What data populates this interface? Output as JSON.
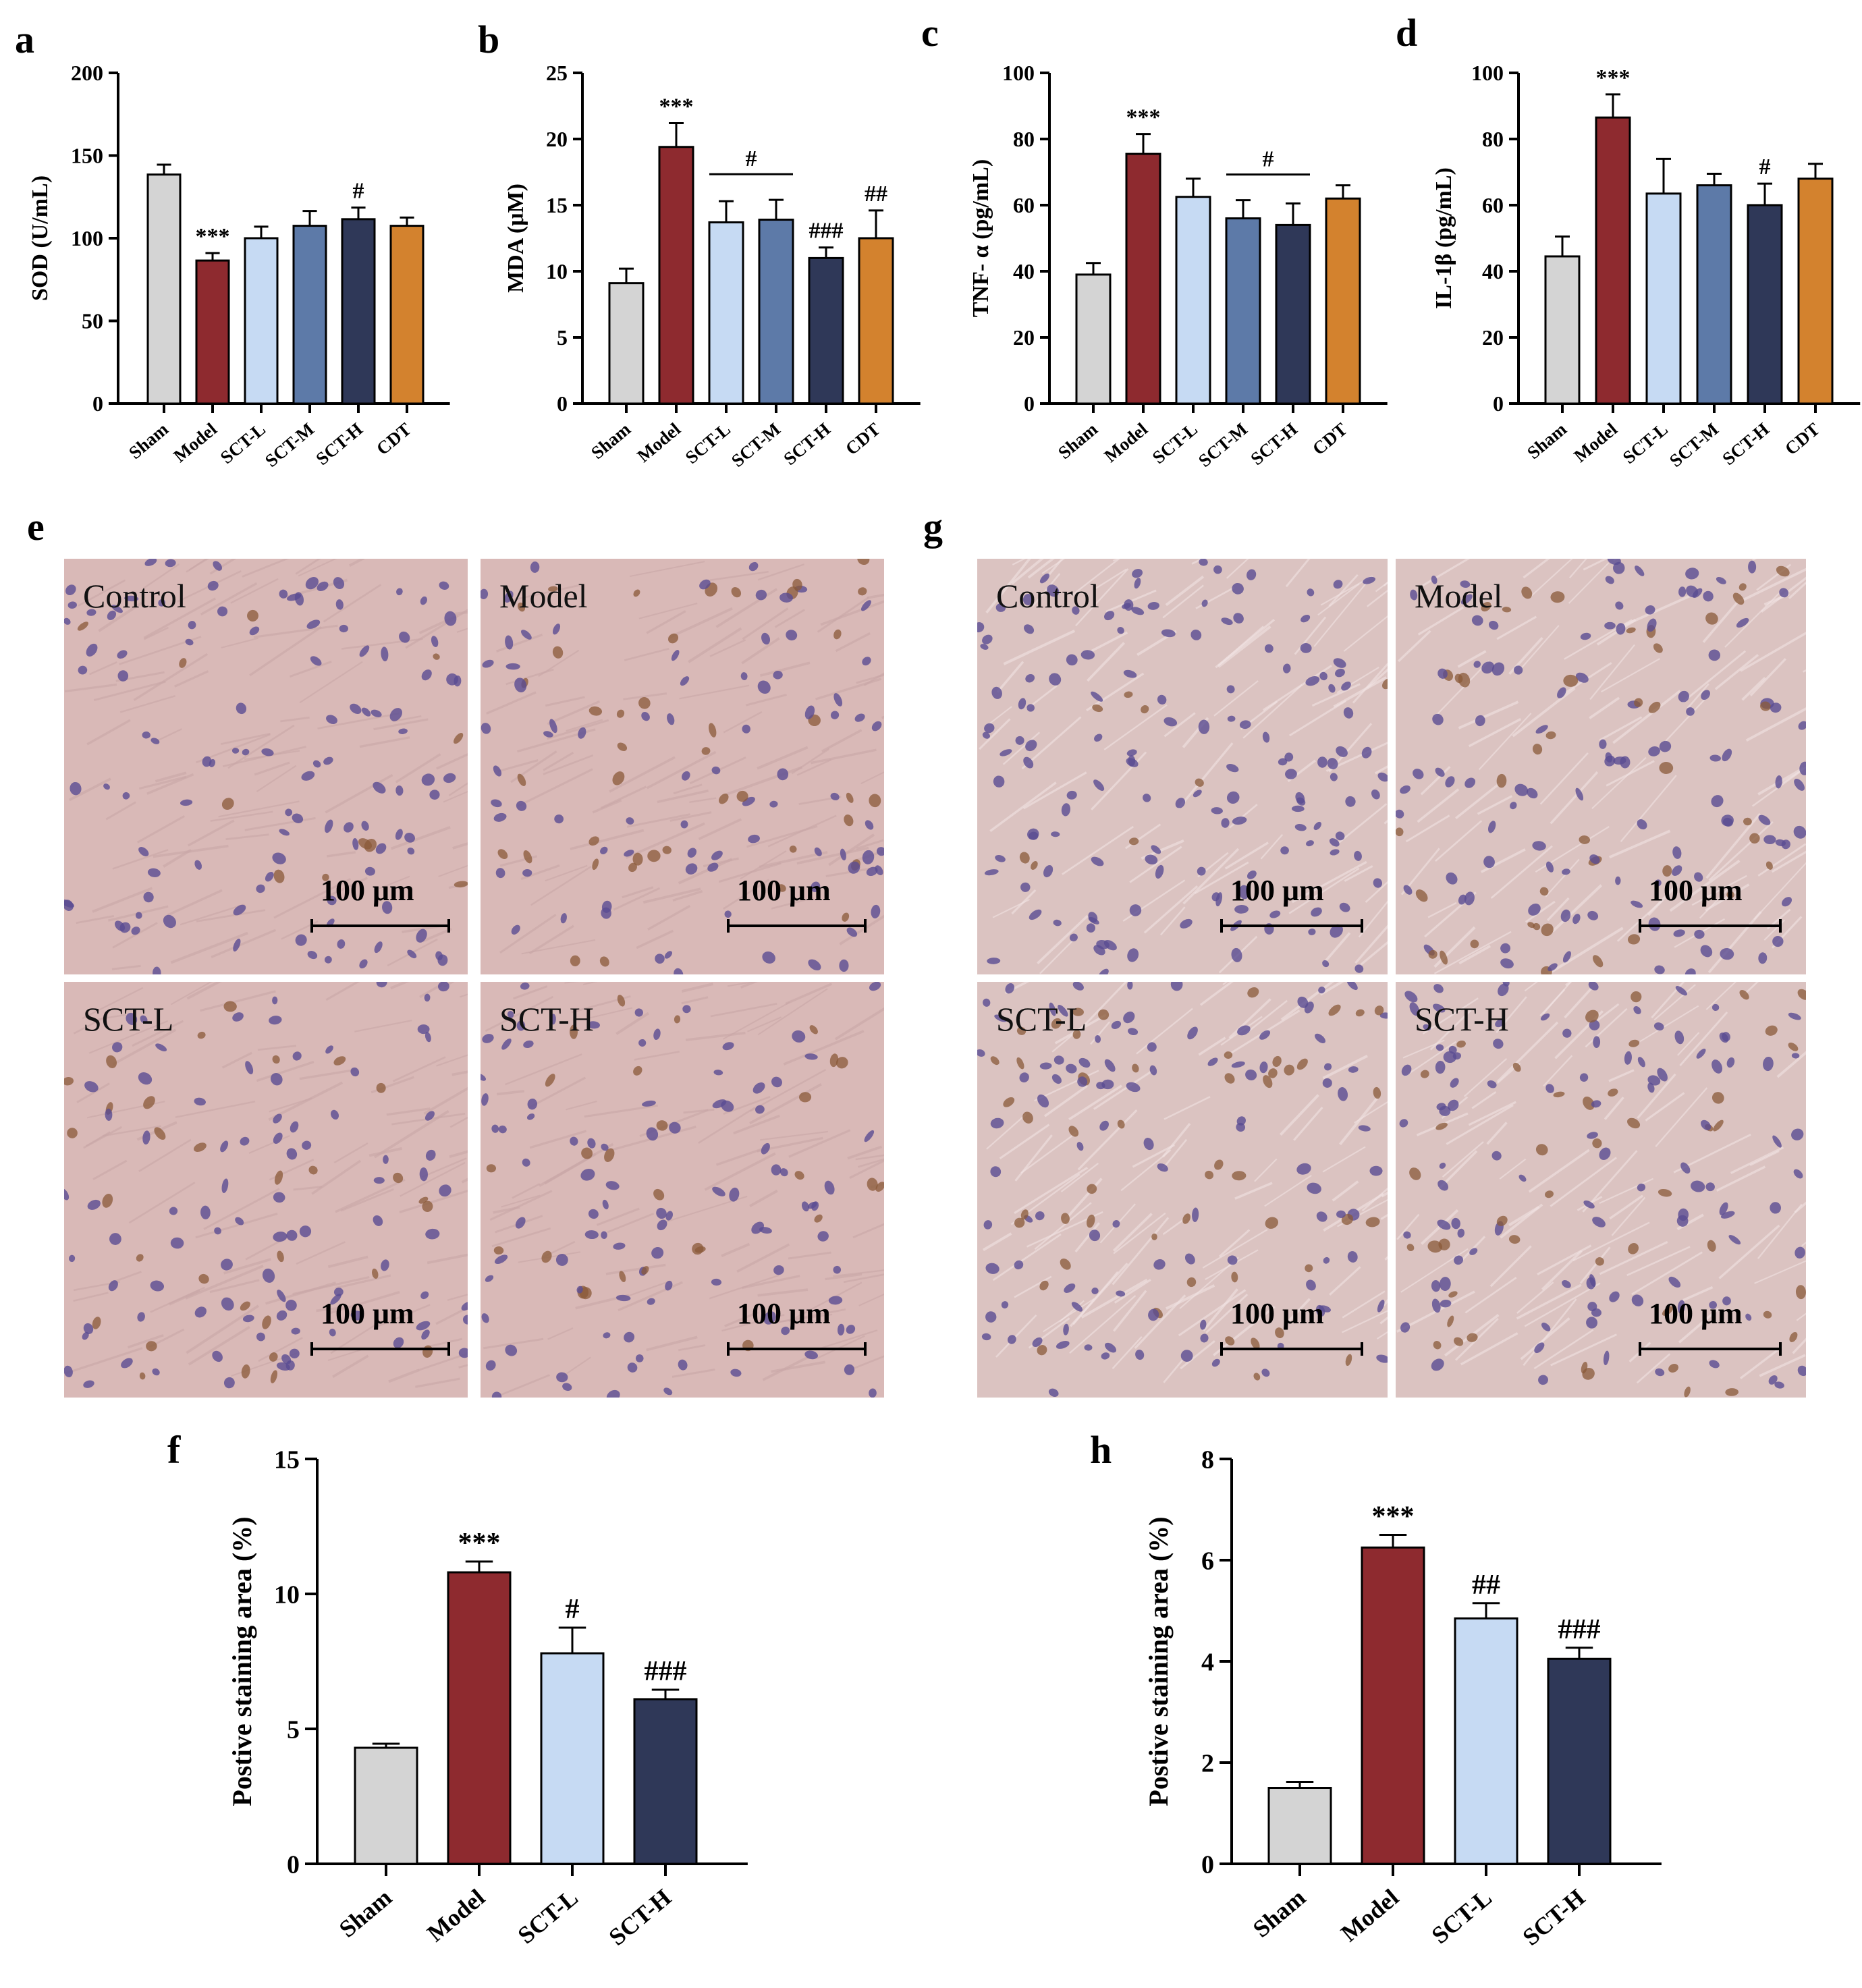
{
  "panel_letters": {
    "a": "a",
    "b": "b",
    "c": "c",
    "d": "d",
    "e": "e",
    "f": "f",
    "g": "g",
    "h": "h"
  },
  "colors": {
    "sham": "#d4d4d4",
    "model": "#8e2a2f",
    "sct_l": "#c6daf3",
    "sct_m": "#5d7aa8",
    "sct_h": "#2f3858",
    "cdt": "#d3822e",
    "tissue_light": "#dcc1bf",
    "tissue_dark": "#c9a8a8",
    "nucleus": "#5a4c92",
    "brown": "#8a5a38"
  },
  "icons": {
    "micrograph": "tissue-texture"
  },
  "chart_data": [
    {
      "id": "a",
      "type": "bar",
      "categories": [
        "Sham",
        "Model",
        "SCT-L",
        "SCT-M",
        "SCT-H",
        "CDT"
      ],
      "values": [
        138.5,
        86.5,
        100,
        107.5,
        111.5,
        107.5
      ],
      "errors": [
        6,
        4.5,
        7,
        9,
        7,
        5
      ],
      "annotations": [
        "",
        "***",
        "",
        "",
        "#",
        ""
      ],
      "ylabel": "SOD (U/mL)",
      "ylim": [
        0,
        200
      ],
      "ticks": [
        0,
        50,
        100,
        150,
        200
      ]
    },
    {
      "id": "b",
      "type": "bar",
      "categories": [
        "Sham",
        "Model",
        "SCT-L",
        "SCT-M",
        "SCT-H",
        "CDT"
      ],
      "values": [
        9.1,
        19.4,
        13.7,
        13.9,
        11.0,
        12.5
      ],
      "errors": [
        1.1,
        1.8,
        1.6,
        1.5,
        0.8,
        2.1
      ],
      "annotations": [
        "",
        "***",
        "",
        "",
        "###",
        "##"
      ],
      "bracket": {
        "from": 2,
        "to": 3,
        "label": "#"
      },
      "ylabel": "MDA (μM)",
      "ylim": [
        0,
        25
      ],
      "ticks": [
        0,
        5,
        10,
        15,
        20,
        25
      ]
    },
    {
      "id": "c",
      "type": "bar",
      "categories": [
        "Sham",
        "Model",
        "SCT-L",
        "SCT-M",
        "SCT-H",
        "CDT"
      ],
      "values": [
        39,
        75.5,
        62.5,
        56,
        54,
        62
      ],
      "errors": [
        3.5,
        6,
        5.5,
        5.5,
        6.5,
        4
      ],
      "annotations": [
        "",
        "***",
        "",
        "",
        "",
        ""
      ],
      "bracket": {
        "from": 3,
        "to": 4,
        "label": "#"
      },
      "ylabel": "TNF- α (pg/mL)",
      "ylim": [
        0,
        100
      ],
      "ticks": [
        0,
        20,
        40,
        60,
        80,
        100
      ]
    },
    {
      "id": "d",
      "type": "bar",
      "categories": [
        "Sham",
        "Model",
        "SCT-L",
        "SCT-M",
        "SCT-H",
        "CDT"
      ],
      "values": [
        44.5,
        86.5,
        63.5,
        66,
        60,
        68
      ],
      "errors": [
        6,
        7,
        10.5,
        3.5,
        6.5,
        4.5
      ],
      "annotations": [
        "",
        "***",
        "",
        "",
        "#",
        ""
      ],
      "ylabel": "IL-1β (pg/mL)",
      "ylim": [
        0,
        100
      ],
      "ticks": [
        0,
        20,
        40,
        60,
        80,
        100
      ]
    },
    {
      "id": "f",
      "type": "bar",
      "categories": [
        "Sham",
        "Model",
        "SCT-L",
        "SCT-H"
      ],
      "values": [
        4.3,
        10.8,
        7.8,
        6.1
      ],
      "errors": [
        0.15,
        0.4,
        0.95,
        0.35
      ],
      "annotations": [
        "",
        "***",
        "#",
        "###"
      ],
      "ylabel": "Postive staining area (%)",
      "ylim": [
        0,
        15
      ],
      "ticks": [
        0,
        5,
        10,
        15
      ]
    },
    {
      "id": "h",
      "type": "bar",
      "categories": [
        "Sham",
        "Model",
        "SCT-L",
        "SCT-H"
      ],
      "values": [
        1.5,
        6.25,
        4.85,
        4.05
      ],
      "errors": [
        0.12,
        0.25,
        0.3,
        0.22
      ],
      "annotations": [
        "",
        "***",
        "##",
        "###"
      ],
      "ylabel": "Postive staining area (%)",
      "ylim": [
        0,
        8
      ],
      "ticks": [
        0,
        2,
        4,
        6,
        8
      ]
    }
  ],
  "micrographs": {
    "e": {
      "tiles": [
        {
          "label": "Control",
          "scalebar": "100 μm"
        },
        {
          "label": "Model",
          "scalebar": "100 μm"
        },
        {
          "label": "SCT-L",
          "scalebar": "100 μm"
        },
        {
          "label": "SCT-H",
          "scalebar": "100 μm"
        }
      ]
    },
    "g": {
      "tiles": [
        {
          "label": "Control",
          "scalebar": "100 μm"
        },
        {
          "label": "Model",
          "scalebar": "100 μm"
        },
        {
          "label": "SCT-L",
          "scalebar": "100 μm"
        },
        {
          "label": "SCT-H",
          "scalebar": "100 μm"
        }
      ]
    }
  }
}
